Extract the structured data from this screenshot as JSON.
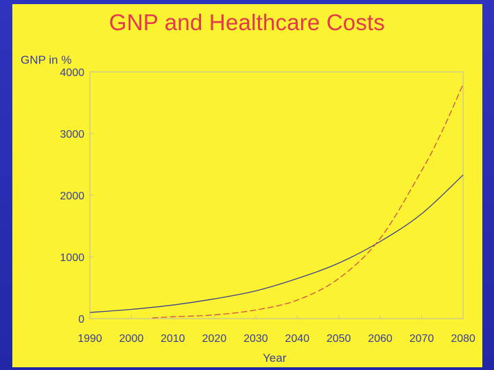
{
  "chart_data": {
    "type": "line",
    "title": "GNP and Healthcare Costs",
    "ylabel": "GNP in %",
    "xlabel": "Year",
    "xlim": [
      1990,
      2080
    ],
    "ylim": [
      0,
      4000
    ],
    "x_ticks": [
      1990,
      2000,
      2010,
      2020,
      2030,
      2040,
      2050,
      2060,
      2070,
      2080
    ],
    "y_ticks": [
      0,
      1000,
      2000,
      3000,
      4000
    ],
    "grid": false,
    "series": [
      {
        "name": "GNP",
        "color": "#3b3f8f",
        "style": "solid",
        "x": [
          1990,
          2000,
          2010,
          2020,
          2030,
          2040,
          2050,
          2060,
          2070,
          2080
        ],
        "y": [
          100,
          150,
          220,
          320,
          450,
          650,
          900,
          1250,
          1700,
          2330
        ]
      },
      {
        "name": "Healthcare Costs",
        "color": "#d84a4a",
        "style": "dashed",
        "x": [
          2005,
          2010,
          2020,
          2030,
          2040,
          2050,
          2060,
          2070,
          2075,
          2080
        ],
        "y": [
          10,
          30,
          60,
          140,
          300,
          650,
          1300,
          2400,
          3050,
          3800
        ]
      }
    ]
  }
}
